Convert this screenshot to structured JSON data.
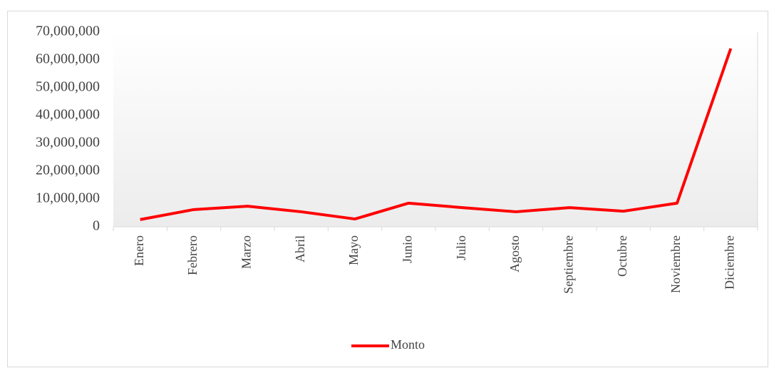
{
  "chart_data": {
    "type": "line",
    "categories": [
      "Enero",
      "Febrero",
      "Marzo",
      "Abril",
      "Mayo",
      "Junio",
      "Julio",
      "Agosto",
      "Septiembre",
      "Octubre",
      "Noviembre",
      "Diciembre"
    ],
    "series": [
      {
        "name": "Monto",
        "color": "#ff0000",
        "values": [
          2600000,
          6200000,
          7400000,
          5400000,
          2800000,
          8500000,
          6900000,
          5400000,
          6900000,
          5600000,
          8500000,
          64100000
        ]
      }
    ],
    "ylim": [
      0,
      70000000
    ],
    "yticks": [
      0,
      {
        "value": 10000000,
        "label": "10,000,000"
      },
      {
        "value": 20000000,
        "label": "20,000,000"
      },
      {
        "value": 30000000,
        "label": "30,000,000"
      },
      {
        "value": 40000000,
        "label": "40,000,000"
      },
      {
        "value": 50000000,
        "label": "50,000,000"
      },
      {
        "value": 60000000,
        "label": "60,000,000"
      },
      {
        "value": 70000000,
        "label": "70,000,000"
      }
    ],
    "legend": "bottom"
  }
}
